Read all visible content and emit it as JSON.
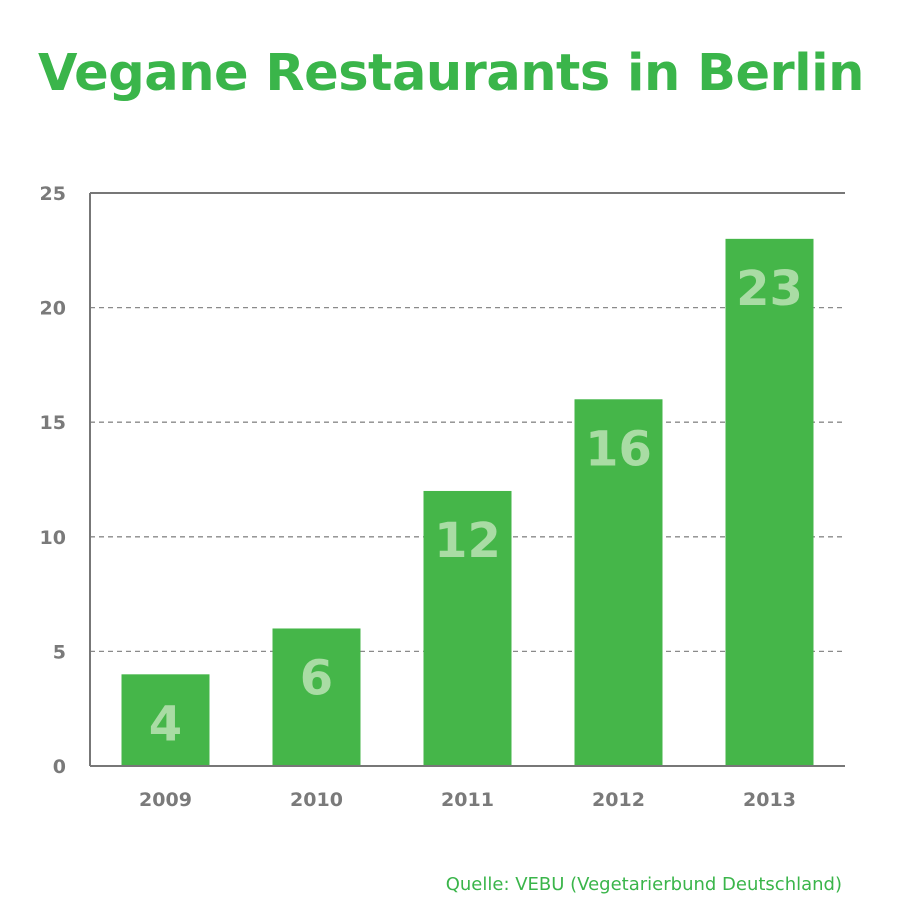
{
  "chart_data": {
    "type": "bar",
    "title": "Vegane Restaurants in Berlin",
    "categories": [
      "2009",
      "2010",
      "2011",
      "2012",
      "2013"
    ],
    "values": [
      4,
      6,
      12,
      16,
      23
    ],
    "data_labels": [
      "4",
      "6",
      "12",
      "16",
      "23"
    ],
    "ylim": [
      0,
      25
    ],
    "yticks": [
      0,
      5,
      10,
      15,
      20,
      25
    ],
    "xlabel": "",
    "ylabel": "",
    "grid": true,
    "grid_style": "dashed",
    "bar_color": "#45b649",
    "data_label_color": "#a9dca4",
    "source": "Quelle: VEBU (Vegetarierbund Deutschland)"
  },
  "colors": {
    "title": "#3ab54a",
    "bar": "#45b649",
    "data_label": "#a9dca4",
    "axis": "#777777",
    "grid": "#8a8a8a",
    "tick_label": "#7a7a7a"
  }
}
